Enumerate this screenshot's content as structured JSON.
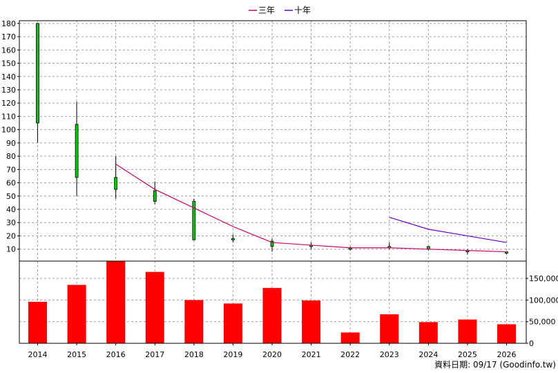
{
  "credit": "資料日期: 09/17 (Goodinfo.tw)",
  "colors": {
    "grid": "#a0a0a0",
    "candle_up": "#00cc00",
    "candle_down": "#00cc00",
    "wick": "#000000",
    "volume": "#ff0000",
    "ma3": "#cc0066",
    "ma10": "#6600cc"
  },
  "chart_data": {
    "type": "bar",
    "grid": true,
    "legend_position": "top-center",
    "legend": [
      {
        "name": "三年",
        "color": "#cc0066"
      },
      {
        "name": "十年",
        "color": "#6600cc"
      }
    ],
    "x": [
      "2014",
      "2015",
      "2016",
      "2017",
      "2018",
      "2019",
      "2020",
      "2021",
      "2022",
      "2023",
      "2024",
      "2025",
      "2026"
    ],
    "price_axis": {
      "ticks": [
        10,
        20,
        30,
        40,
        50,
        60,
        70,
        80,
        90,
        100,
        110,
        120,
        130,
        140,
        150,
        160,
        170,
        180
      ],
      "ylim": [
        1,
        182
      ]
    },
    "volume_axis": {
      "ticks": [
        0,
        50000,
        100000,
        150000
      ],
      "tick_labels": [
        "0",
        "50,000",
        "100,000",
        "150,000"
      ],
      "ylim": [
        0,
        190000
      ]
    },
    "candles": [
      {
        "x": "2014",
        "open": 105,
        "close": 180,
        "high": 180,
        "low": 90
      },
      {
        "x": "2015",
        "open": 104,
        "close": 64,
        "high": 121,
        "low": 50
      },
      {
        "x": "2016",
        "open": 64,
        "close": 55,
        "high": 80,
        "low": 48
      },
      {
        "x": "2017",
        "open": 54,
        "close": 46,
        "high": 61,
        "low": 44
      },
      {
        "x": "2018",
        "open": 46,
        "close": 17,
        "high": 48,
        "low": 17
      },
      {
        "x": "2019",
        "open": 18,
        "close": 17,
        "high": 21,
        "low": 15
      },
      {
        "x": "2020",
        "open": 16,
        "close": 12,
        "high": 18,
        "low": 8
      },
      {
        "x": "2021",
        "open": 13,
        "close": 12,
        "high": 15,
        "low": 10
      },
      {
        "x": "2022",
        "open": 11,
        "close": 11,
        "high": 12,
        "low": 9
      },
      {
        "x": "2023",
        "open": 12,
        "close": 11,
        "high": 15,
        "low": 10
      },
      {
        "x": "2024",
        "open": 12,
        "close": 10,
        "high": 12,
        "low": 9
      },
      {
        "x": "2025",
        "open": 9,
        "close": 9,
        "high": 10,
        "low": 6
      },
      {
        "x": "2026",
        "open": 8,
        "close": 7,
        "high": 8,
        "low": 6
      }
    ],
    "series": [
      {
        "name": "三年",
        "type": "line",
        "x": [
          "2016",
          "2017",
          "2018",
          "2019",
          "2020",
          "2021",
          "2022",
          "2023",
          "2024",
          "2025",
          "2026"
        ],
        "values": [
          74,
          55,
          41,
          27,
          15,
          13,
          11,
          11,
          10,
          9,
          8
        ]
      },
      {
        "name": "十年",
        "type": "line",
        "x": [
          "2023",
          "2024",
          "2025",
          "2026"
        ],
        "values": [
          34,
          25,
          20,
          15
        ]
      }
    ],
    "volume": [
      96000,
      135000,
      195000,
      165000,
      100000,
      92000,
      128000,
      99000,
      25000,
      67000,
      49000,
      55000,
      44000
    ]
  }
}
